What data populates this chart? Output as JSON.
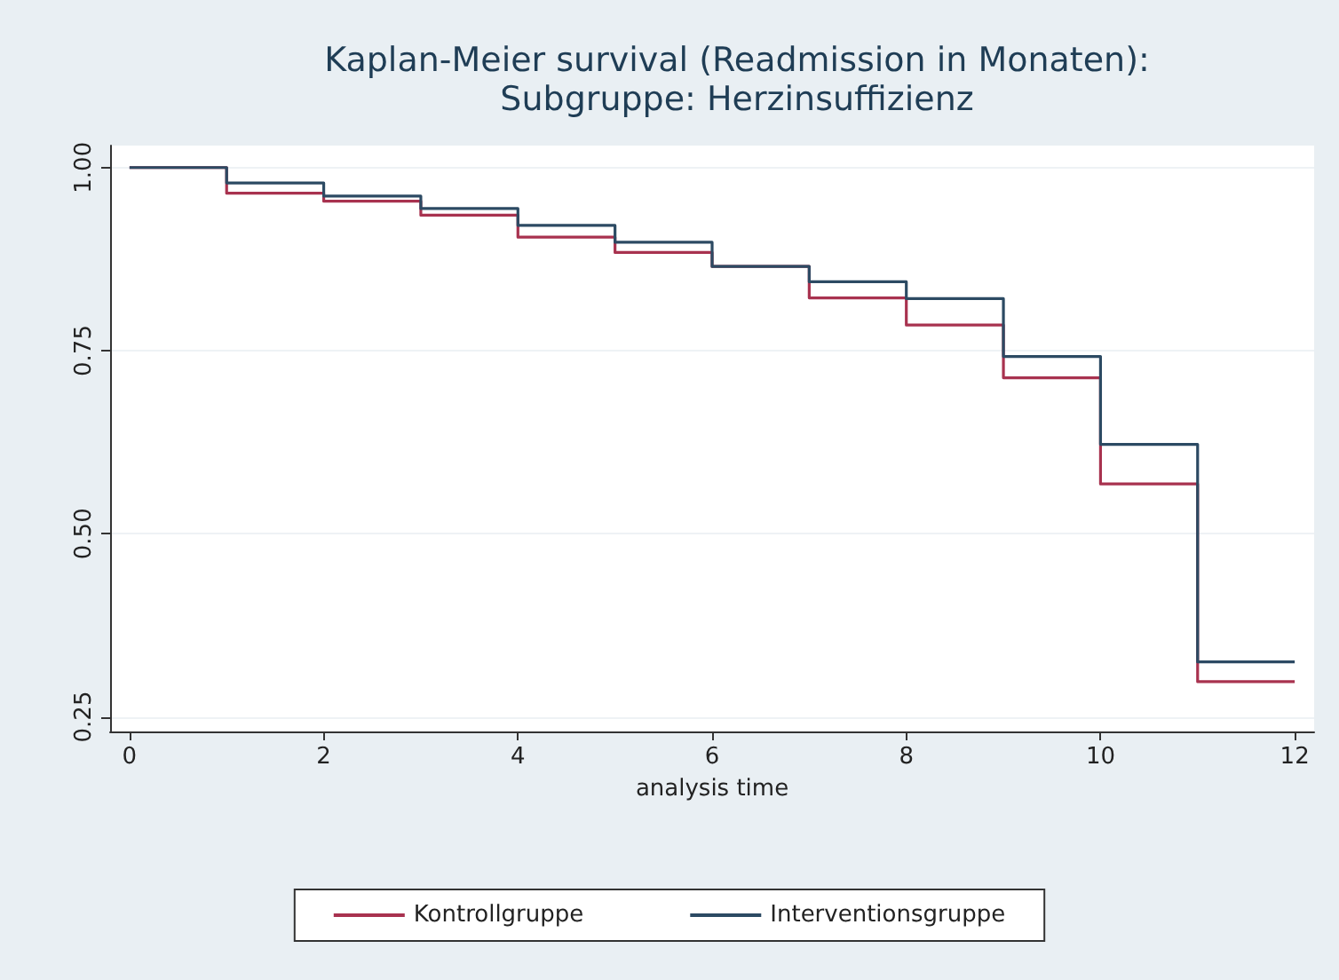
{
  "chart_data": {
    "type": "step",
    "title": "Kaplan-Meier survival (Readmission in Monaten):\nSubgruppe: Herzinsuffizienz",
    "xlabel": "analysis time",
    "x": [
      0,
      1,
      2,
      3,
      4,
      5,
      6,
      7,
      8,
      9,
      10,
      11,
      12
    ],
    "series": [
      {
        "name": "Kontrollgruppe",
        "color": "#a8324f",
        "values": [
          1.0,
          0.965,
          0.954,
          0.935,
          0.905,
          0.884,
          0.865,
          0.822,
          0.785,
          0.713,
          0.568,
          0.298,
          0.298
        ]
      },
      {
        "name": "Interventionsgruppe",
        "color": "#2c4a63",
        "values": [
          1.0,
          0.979,
          0.961,
          0.944,
          0.921,
          0.898,
          0.865,
          0.844,
          0.821,
          0.742,
          0.622,
          0.325,
          0.325
        ]
      }
    ],
    "xlim": [
      -0.2,
      12.2
    ],
    "xticks": [
      0,
      2,
      4,
      6,
      8,
      10,
      12
    ],
    "ylim": [
      0.23,
      1.03
    ],
    "yticks": [
      {
        "value": 0.25,
        "label": "0.25"
      },
      {
        "value": 0.5,
        "label": "0.50"
      },
      {
        "value": 0.75,
        "label": "0.75"
      },
      {
        "value": 1.0,
        "label": "1.00"
      }
    ],
    "grid": "y",
    "legend": "bottom",
    "line_style": "solid",
    "marker": "none"
  }
}
